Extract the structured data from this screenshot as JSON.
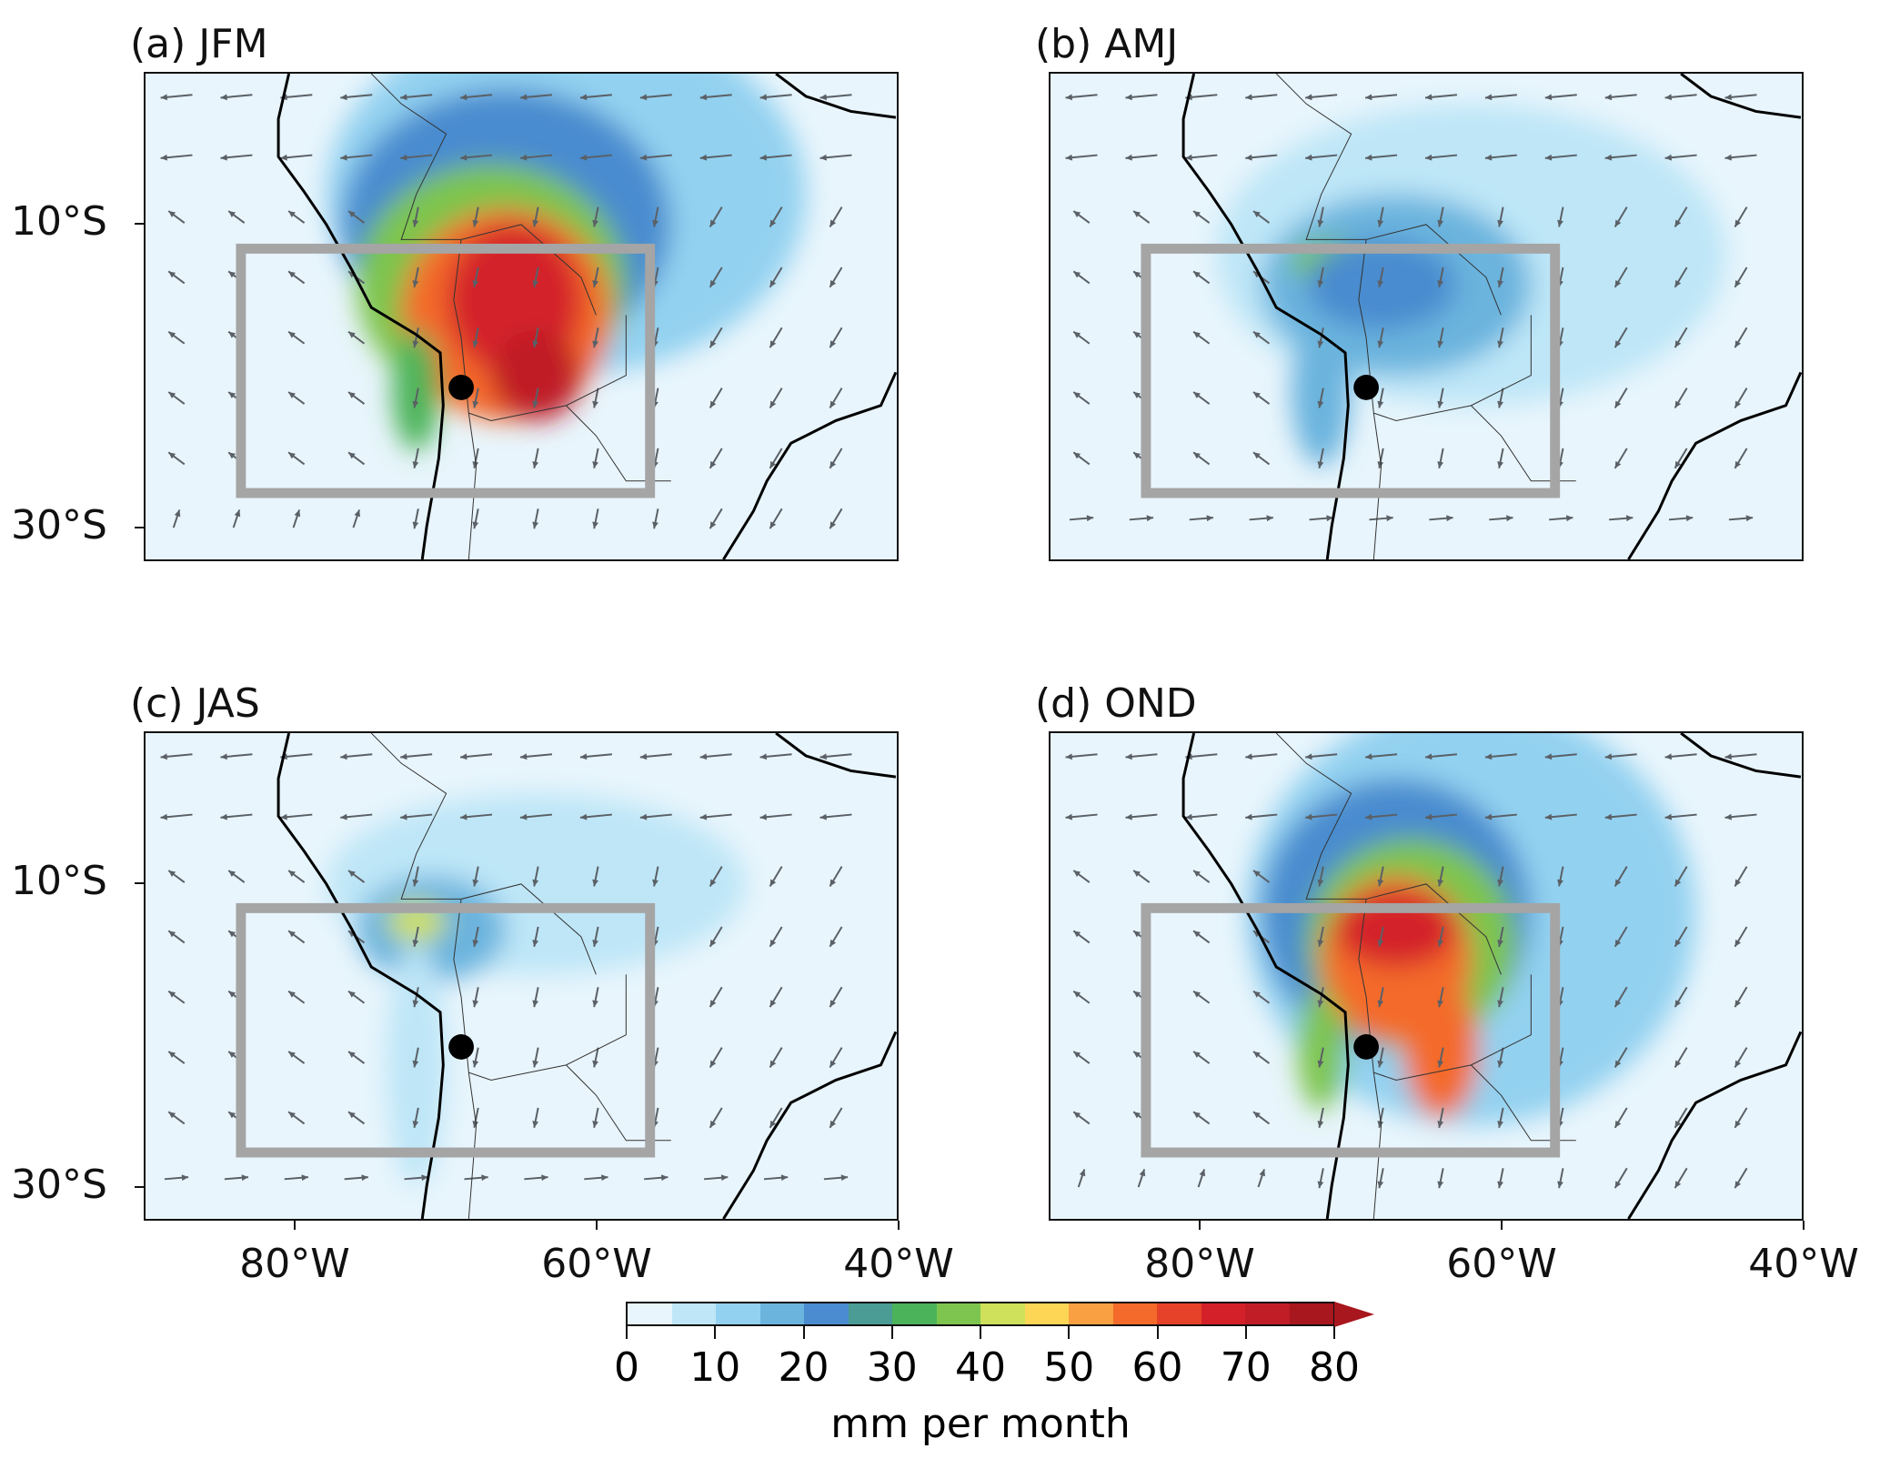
{
  "chart_data": {
    "type": "map",
    "extent": {
      "lon": [
        -90,
        -40
      ],
      "lat": [
        -32.2,
        0
      ]
    },
    "yticks": [
      {
        "lat": -10,
        "label": "10°S"
      },
      {
        "lat": -30,
        "label": "30°S"
      }
    ],
    "xticks": [
      {
        "lon": -80,
        "label": "80°W"
      },
      {
        "lon": -60,
        "label": "60°W"
      },
      {
        "lon": -40,
        "label": "40°W"
      }
    ],
    "box": {
      "lon": [
        -83.7,
        -56.4
      ],
      "lat": [
        -27.8,
        -11.6
      ]
    },
    "point": {
      "lon": -69,
      "lat": -20.8
    },
    "panels": [
      {
        "title": "(a) JFM",
        "blobs": [
          [
            -62,
            -8,
            16,
            12,
            12
          ],
          [
            -66,
            -10,
            11,
            9,
            22
          ],
          [
            -67,
            -14,
            9,
            8,
            38
          ],
          [
            -66,
            -16,
            7,
            7,
            55
          ],
          [
            -65.5,
            -15,
            4.5,
            5,
            68
          ],
          [
            -64,
            -20,
            3,
            3,
            72
          ],
          [
            -72,
            -21,
            1.6,
            4,
            32
          ]
        ]
      },
      {
        "title": "(b) AMJ",
        "blobs": [
          [
            -62,
            -12,
            17,
            10,
            8
          ],
          [
            -67,
            -14,
            9,
            6,
            17
          ],
          [
            -72,
            -21,
            2,
            5,
            15
          ],
          [
            -71,
            -12.5,
            3,
            1.5,
            35
          ],
          [
            -68,
            -14,
            5,
            3,
            24
          ]
        ]
      },
      {
        "title": "(c) JAS",
        "blobs": [
          [
            -64,
            -10,
            14,
            6,
            7
          ],
          [
            -71,
            -13,
            5,
            3.5,
            17
          ],
          [
            -72,
            -12.5,
            2,
            1.3,
            40
          ],
          [
            -72,
            -22,
            2,
            8,
            9
          ]
        ]
      },
      {
        "title": "(d) OND",
        "blobs": [
          [
            -62,
            -12,
            15,
            14,
            12
          ],
          [
            -67,
            -12,
            9,
            9,
            24
          ],
          [
            -66,
            -14,
            7,
            7,
            38
          ],
          [
            -67,
            -15,
            5,
            5.5,
            55
          ],
          [
            -67,
            -13,
            4,
            2.5,
            66
          ],
          [
            -64,
            -21,
            2.5,
            4.5,
            58
          ],
          [
            -72,
            -21,
            1.6,
            4,
            35
          ]
        ]
      }
    ],
    "colorbar": {
      "levels": [
        0,
        5,
        10,
        15,
        20,
        25,
        30,
        35,
        40,
        45,
        50,
        55,
        60,
        65,
        70,
        75,
        80
      ],
      "tick_labels": [
        "0",
        "10",
        "20",
        "30",
        "40",
        "50",
        "60",
        "70",
        "80"
      ],
      "label": "mm per month",
      "extend": "max",
      "colors": [
        "#e8f5fc",
        "#bee6f7",
        "#93d1f0",
        "#6bb4de",
        "#4a8ccf",
        "#4a9c94",
        "#4bb359",
        "#7dc54e",
        "#cfe05a",
        "#fdd655",
        "#f8a042",
        "#f46a2b",
        "#e64229",
        "#d42129",
        "#c01d27",
        "#a8161e"
      ]
    }
  }
}
